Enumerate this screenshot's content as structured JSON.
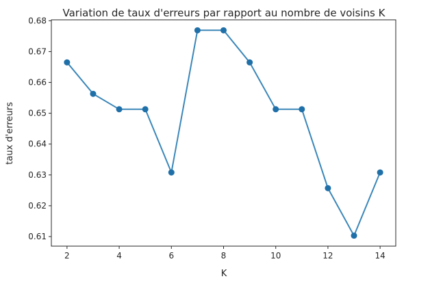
{
  "chart_data": {
    "type": "line",
    "title": "Variation de taux d'erreurs par rapport au nombre de voisins K",
    "xlabel": "K",
    "ylabel": "taux d'erreurs",
    "x": [
      2,
      3,
      4,
      5,
      6,
      7,
      8,
      9,
      10,
      11,
      12,
      13,
      14
    ],
    "y": [
      0.6665,
      0.6563,
      0.6513,
      0.6513,
      0.6308,
      0.6769,
      0.6769,
      0.6665,
      0.6513,
      0.6513,
      0.6257,
      0.6103,
      0.6308
    ],
    "xlim": [
      1.4,
      14.6
    ],
    "ylim": [
      0.6069,
      0.6803
    ],
    "xticks": [
      2,
      4,
      6,
      8,
      10,
      12,
      14
    ],
    "xtick_labels": [
      "2",
      "4",
      "6",
      "8",
      "10",
      "12",
      "14"
    ],
    "yticks": [
      0.61,
      0.62,
      0.63,
      0.64,
      0.65,
      0.66,
      0.67,
      0.68
    ],
    "ytick_labels": [
      "0.61",
      "0.62",
      "0.63",
      "0.64",
      "0.65",
      "0.66",
      "0.67",
      "0.68"
    ],
    "color": "#1f77b4",
    "marker": "circle",
    "grid": false
  }
}
